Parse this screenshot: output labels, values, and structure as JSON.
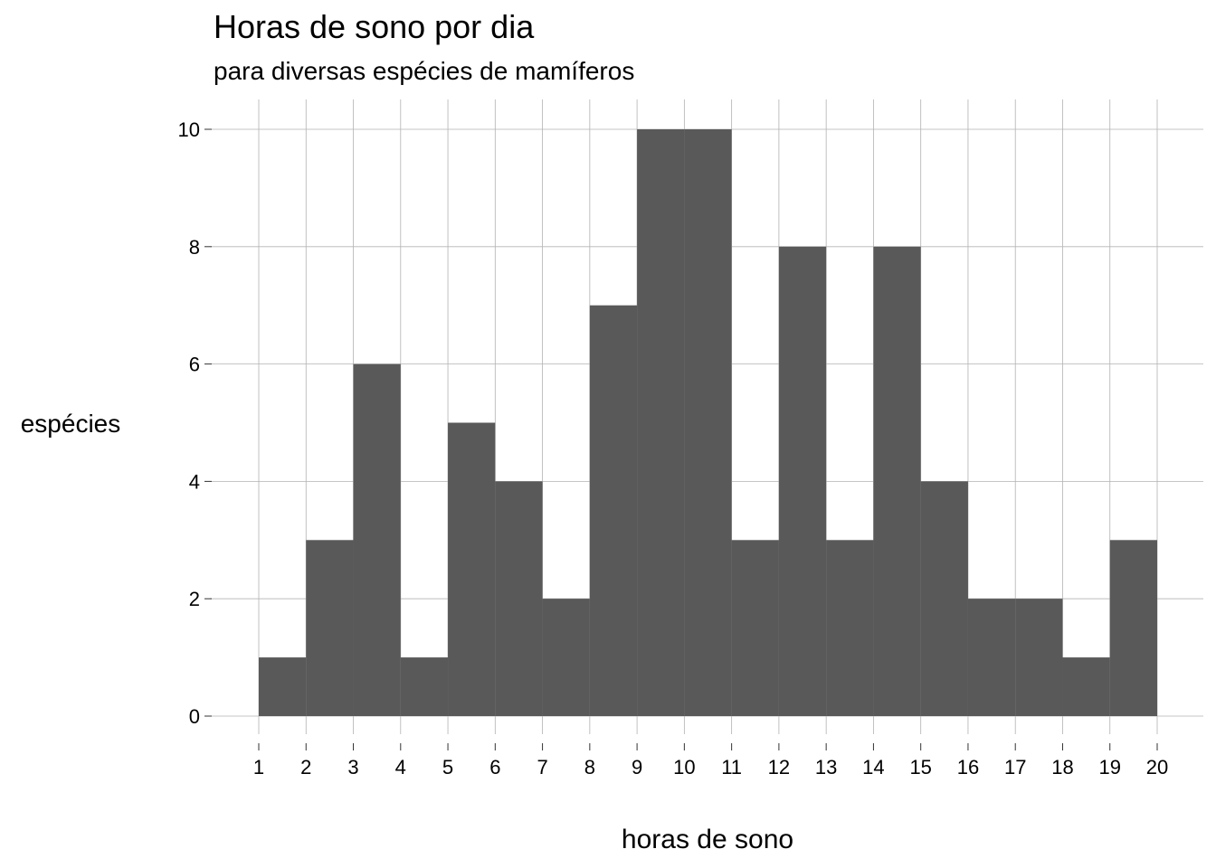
{
  "chart_data": {
    "type": "bar",
    "title": "Horas de sono por dia",
    "subtitle": "para diversas espécies de mamíferos",
    "xlabel": "horas de sono",
    "ylabel": "espécies",
    "x_ticks": [
      1,
      2,
      3,
      4,
      5,
      6,
      7,
      8,
      9,
      10,
      11,
      12,
      13,
      14,
      15,
      16,
      17,
      18,
      19,
      20
    ],
    "y_ticks": [
      0,
      2,
      4,
      6,
      8,
      10
    ],
    "xlim": [
      0.25,
      21
    ],
    "ylim": [
      -0.5,
      10.5
    ],
    "bin_edges": [
      1,
      2,
      3,
      4,
      5,
      6,
      7,
      8,
      9,
      10,
      11,
      12,
      13,
      14,
      15,
      16,
      17,
      18,
      19,
      20
    ],
    "values": [
      1,
      3,
      6,
      1,
      5,
      4,
      2,
      7,
      10,
      10,
      3,
      8,
      3,
      8,
      4,
      2,
      2,
      1,
      3
    ],
    "grid": true,
    "bar_color": "#595959",
    "grid_color": "#b3b3b3"
  }
}
